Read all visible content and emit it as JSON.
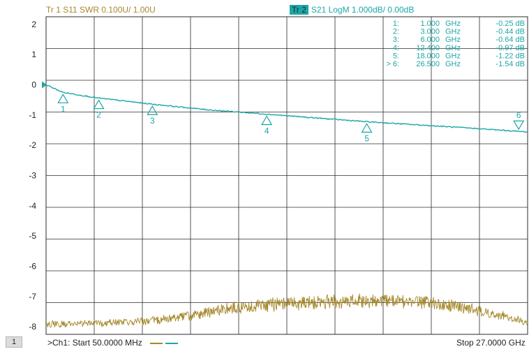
{
  "header": {
    "tr1": "Tr 1  S11 SWR 0.100U/  1.00U",
    "tr2_badge": "Tr 2",
    "tr2": "S21 LogM 1.000dB/  0.00dB"
  },
  "status": {
    "channel_box": "1",
    "start": ">Ch1:  Start  50.0000 MHz",
    "stop": "Stop  27.0000 GHz"
  },
  "colors": {
    "s21_trace": "#1fa5a5",
    "s11_trace": "#a5882a",
    "grid": "#2b2b2b"
  },
  "marker_table": [
    {
      "id": "1:",
      "freq": "1.000",
      "unit": "GHz",
      "value": "-0.25 dB"
    },
    {
      "id": "2:",
      "freq": "3.000",
      "unit": "GHz",
      "value": "-0.44 dB"
    },
    {
      "id": "3:",
      "freq": "6.000",
      "unit": "GHz",
      "value": "-0.64 dB"
    },
    {
      "id": "4:",
      "freq": "12.400",
      "unit": "GHz",
      "value": "-0.97 dB"
    },
    {
      "id": "5:",
      "freq": "18.000",
      "unit": "GHz",
      "value": "-1.22 dB"
    },
    {
      "id": "> 6:",
      "freq": "26.500",
      "unit": "GHz",
      "value": "-1.54 dB"
    }
  ],
  "chart_data": {
    "type": "line",
    "xlim": [
      0.05,
      27.0
    ],
    "ylim": [
      -8.25,
      2.25
    ],
    "grid": true,
    "y_ticks": [
      "2",
      "1",
      "0",
      "-1",
      "-2",
      "-3",
      "-4",
      "-5",
      "-6",
      "-7",
      "-8"
    ],
    "y_tick_values": [
      2,
      1,
      0,
      -1,
      -2,
      -3,
      -4,
      -5,
      -6,
      -7,
      -8
    ],
    "series": [
      {
        "x": [
          0.05,
          1,
          3,
          6,
          9,
          12.4,
          15,
          18,
          21,
          24,
          26.5,
          27
        ],
        "y": [
          0.0,
          -0.25,
          -0.44,
          -0.64,
          -0.82,
          -0.97,
          -1.09,
          -1.22,
          -1.33,
          -1.44,
          -1.54,
          -1.56
        ]
      },
      {
        "x": [
          0.05,
          3,
          6,
          8,
          10,
          12,
          15,
          18,
          20,
          23,
          25,
          27
        ],
        "y": [
          -7.92,
          -7.88,
          -7.8,
          -7.65,
          -7.42,
          -7.3,
          -7.18,
          -7.12,
          -7.15,
          -7.3,
          -7.55,
          -7.85
        ]
      }
    ],
    "markers": [
      {
        "label": "1",
        "x": 1.0,
        "y": -0.25,
        "dir": "up"
      },
      {
        "label": "2",
        "x": 3.0,
        "y": -0.44,
        "dir": "up"
      },
      {
        "label": "3",
        "x": 6.0,
        "y": -0.64,
        "dir": "up"
      },
      {
        "label": "4",
        "x": 12.4,
        "y": -0.97,
        "dir": "up"
      },
      {
        "label": "5",
        "x": 18.0,
        "y": -1.22,
        "dir": "up"
      },
      {
        "label": "6",
        "x": 26.5,
        "y": -1.54,
        "dir": "down"
      }
    ]
  }
}
